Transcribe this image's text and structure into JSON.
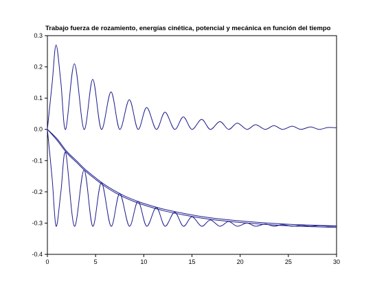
{
  "chart_data": {
    "type": "line",
    "title": "Trabajo fuerza de rozamiento, energías cinética, potencial y mecánica en función del tiempo",
    "xlabel": "",
    "ylabel": "",
    "xlim": [
      0,
      30
    ],
    "ylim": [
      -0.4,
      0.3
    ],
    "x_ticks": [
      {
        "value": 0,
        "label": "0"
      },
      {
        "value": 5,
        "label": "5"
      },
      {
        "value": 10,
        "label": "10"
      },
      {
        "value": 15,
        "label": "15"
      },
      {
        "value": 20,
        "label": "20"
      },
      {
        "value": 25,
        "label": "25"
      },
      {
        "value": 30,
        "label": "30"
      }
    ],
    "y_ticks": [
      {
        "value": 0.3,
        "label": "0.3"
      },
      {
        "value": 0.2,
        "label": "0.2"
      },
      {
        "value": 0.1,
        "label": "0.1"
      },
      {
        "value": 0.0,
        "label": "0.0"
      },
      {
        "value": -0.1,
        "label": "-0.1"
      },
      {
        "value": -0.2,
        "label": "-0.2"
      },
      {
        "value": -0.3,
        "label": "-0.3"
      },
      {
        "value": -0.4,
        "label": "-0.4"
      }
    ],
    "grid": false,
    "legend": "none",
    "line_color": "#1a1a8c",
    "series": [
      {
        "x": [
          0,
          0.5,
          0.9,
          1.4,
          1.9,
          2.8,
          3.8,
          4.7,
          5.6,
          6.6,
          7.5,
          8.5,
          9.4,
          10.3,
          11.3,
          12.2,
          13.2,
          14.1,
          15.0,
          16.0,
          16.9,
          17.9,
          18.8,
          19.7,
          20.7,
          21.6,
          22.6,
          23.5,
          24.4,
          25.4,
          26.3,
          27.3,
          28.2,
          29.1,
          30
        ],
        "values": [
          0.0,
          0.15,
          0.27,
          0.15,
          0.0,
          0.21,
          0.0,
          0.16,
          0.0,
          0.12,
          0.0,
          0.095,
          0.0,
          0.07,
          0.0,
          0.055,
          0.0,
          0.04,
          0.0,
          0.032,
          0.0,
          0.025,
          0.0,
          0.02,
          0.0,
          0.015,
          0.0,
          0.012,
          0.0,
          0.01,
          0.0,
          0.008,
          0.0,
          0.006,
          0.005
        ]
      },
      {
        "x": [
          0,
          0.5,
          0.9,
          1.4,
          1.9,
          2.8,
          3.8,
          4.7,
          5.6,
          6.6,
          7.5,
          8.5,
          9.4,
          10.3,
          11.3,
          12.2,
          13.2,
          14.1,
          15.0,
          16.0,
          16.9,
          17.9,
          18.8,
          19.7,
          20.7,
          21.6,
          22.6,
          23.5,
          24.4,
          25.4,
          26.3,
          27.3,
          28.2,
          29.1,
          30
        ],
        "values": [
          0.0,
          -0.16,
          -0.31,
          -0.2,
          -0.075,
          -0.31,
          -0.13,
          -0.31,
          -0.17,
          -0.31,
          -0.205,
          -0.31,
          -0.23,
          -0.31,
          -0.25,
          -0.31,
          -0.265,
          -0.31,
          -0.28,
          -0.31,
          -0.29,
          -0.31,
          -0.295,
          -0.31,
          -0.3,
          -0.31,
          -0.303,
          -0.31,
          -0.305,
          -0.31,
          -0.307,
          -0.31,
          -0.308,
          -0.31,
          -0.31
        ]
      },
      {
        "x": [
          0,
          1,
          2,
          3,
          4,
          5,
          6,
          7,
          8,
          9,
          10,
          12,
          14,
          16,
          18,
          20,
          22,
          24,
          26,
          28,
          30
        ],
        "values": [
          0.0,
          -0.03,
          -0.07,
          -0.1,
          -0.13,
          -0.155,
          -0.178,
          -0.197,
          -0.213,
          -0.226,
          -0.237,
          -0.255,
          -0.268,
          -0.279,
          -0.287,
          -0.293,
          -0.298,
          -0.302,
          -0.305,
          -0.307,
          -0.309
        ]
      },
      {
        "x": [
          0,
          1,
          2,
          3,
          4,
          5,
          6,
          7,
          8,
          9,
          10,
          12,
          14,
          16,
          18,
          20,
          22,
          24,
          26,
          28,
          30
        ],
        "values": [
          0.0,
          -0.035,
          -0.075,
          -0.105,
          -0.135,
          -0.16,
          -0.183,
          -0.202,
          -0.218,
          -0.231,
          -0.242,
          -0.26,
          -0.273,
          -0.284,
          -0.292,
          -0.298,
          -0.303,
          -0.307,
          -0.31,
          -0.312,
          -0.314
        ]
      }
    ]
  }
}
